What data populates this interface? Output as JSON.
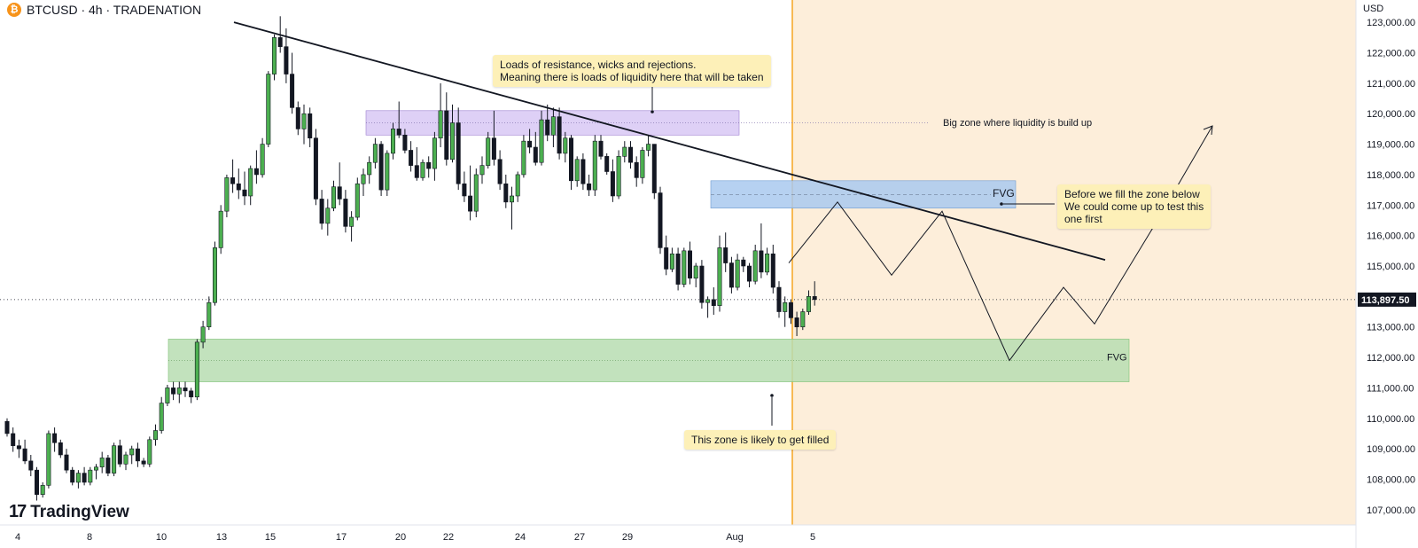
{
  "header": {
    "coin_glyph": "₿",
    "title": "BTCUSD · 4h · TRADENATION"
  },
  "currency": "USD",
  "brand": {
    "logo": "17",
    "name": "TradingView"
  },
  "colors": {
    "bull": "#4caf50",
    "bear": "#131722",
    "forecast_bg": "#fdeeda",
    "forecast_line": "#f5a623",
    "purple_zone": "#d8c8f5",
    "blue_zone": "#a9c9ee",
    "green_zone": "#b7ddb2"
  },
  "annotations": {
    "resistance_note": [
      "Loads of resistance, wicks and rejections.",
      "Meaning there is loads of liquidity here that will be taken"
    ],
    "fill_zone_note": "This zone is likely to get filled",
    "test_zone_note": [
      "Before we fill the zone below",
      "We could come up to test this",
      "one first"
    ],
    "big_zone_label": "Big zone where liquidity is build up",
    "fvg_upper_label": "FVG",
    "fvg_lower_label": "FVG"
  },
  "chart_data": {
    "type": "candlestick",
    "symbol": "BTCUSD",
    "interval": "4h",
    "y_axis": {
      "ylim": [
        106500,
        123500
      ],
      "ticks": [
        "107,000.00",
        "108,000.00",
        "109,000.00",
        "110,000.00",
        "111,000.00",
        "112,000.00",
        "113,000.00",
        "114,000.00",
        "115,000.00",
        "116,000.00",
        "117,000.00",
        "118,000.00",
        "119,000.00",
        "120,000.00",
        "121,000.00",
        "122,000.00",
        "123,000.00"
      ]
    },
    "x_axis": {
      "ticks": [
        "4",
        "8",
        "10",
        "13",
        "15",
        "17",
        "20",
        "22",
        "24",
        "27",
        "29",
        "Aug",
        "5"
      ]
    },
    "last_price": 113897.5,
    "last_price_label": "113,897.50",
    "candles": [
      [
        109900,
        110000,
        109400,
        109500
      ],
      [
        109500,
        109700,
        108900,
        109100
      ],
      [
        109100,
        109300,
        108700,
        109000
      ],
      [
        109000,
        109300,
        108500,
        108600
      ],
      [
        108600,
        108800,
        108100,
        108300
      ],
      [
        108300,
        108400,
        107300,
        107500
      ],
      [
        107500,
        107900,
        107400,
        107800
      ],
      [
        107800,
        109600,
        107700,
        109500
      ],
      [
        109500,
        109700,
        108900,
        109200
      ],
      [
        109200,
        109300,
        108700,
        108800
      ],
      [
        108800,
        109000,
        108200,
        108300
      ],
      [
        108300,
        108400,
        107800,
        107900
      ],
      [
        107900,
        108300,
        107700,
        108200
      ],
      [
        108200,
        108400,
        107800,
        107900
      ],
      [
        107900,
        108400,
        107800,
        108300
      ],
      [
        108300,
        108500,
        108000,
        108400
      ],
      [
        108400,
        108900,
        108200,
        108700
      ],
      [
        108700,
        108800,
        108100,
        108200
      ],
      [
        108200,
        109200,
        108100,
        109100
      ],
      [
        109100,
        109300,
        108400,
        108500
      ],
      [
        108500,
        108900,
        108300,
        108800
      ],
      [
        108800,
        109100,
        108500,
        109000
      ],
      [
        109000,
        109200,
        108400,
        108600
      ],
      [
        108600,
        108700,
        108400,
        108500
      ],
      [
        108500,
        109400,
        108400,
        109300
      ],
      [
        109300,
        109800,
        109100,
        109600
      ],
      [
        109600,
        110700,
        109500,
        110500
      ],
      [
        110500,
        111100,
        110400,
        111000
      ],
      [
        111000,
        111200,
        110600,
        110800
      ],
      [
        110800,
        111200,
        110500,
        111000
      ],
      [
        111000,
        111200,
        110700,
        110900
      ],
      [
        110900,
        111000,
        110500,
        110700
      ],
      [
        110700,
        112600,
        110600,
        112500
      ],
      [
        112500,
        113200,
        112300,
        113000
      ],
      [
        113000,
        114000,
        112900,
        113800
      ],
      [
        113800,
        115800,
        113700,
        115600
      ],
      [
        115600,
        117000,
        115400,
        116800
      ],
      [
        116800,
        118000,
        116600,
        117900
      ],
      [
        117900,
        118500,
        117400,
        117700
      ],
      [
        117700,
        118200,
        117200,
        117500
      ],
      [
        117500,
        118100,
        117000,
        117300
      ],
      [
        117300,
        118300,
        117000,
        118200
      ],
      [
        118200,
        118800,
        117700,
        118000
      ],
      [
        118000,
        119200,
        117900,
        119000
      ],
      [
        119000,
        121400,
        118900,
        121300
      ],
      [
        121300,
        122600,
        121100,
        122500
      ],
      [
        122500,
        123200,
        122000,
        122200
      ],
      [
        122200,
        122800,
        121000,
        121300
      ],
      [
        121300,
        122000,
        120000,
        120200
      ],
      [
        120200,
        120400,
        119300,
        119500
      ],
      [
        119500,
        120300,
        119000,
        120000
      ],
      [
        120000,
        120200,
        118900,
        119200
      ],
      [
        119200,
        119500,
        117000,
        117200
      ],
      [
        117200,
        117500,
        116200,
        116400
      ],
      [
        116400,
        117200,
        116000,
        116900
      ],
      [
        116900,
        117800,
        116800,
        117600
      ],
      [
        117600,
        118400,
        117000,
        117200
      ],
      [
        117200,
        117500,
        116100,
        116300
      ],
      [
        116300,
        116800,
        115800,
        116600
      ],
      [
        116600,
        117900,
        116500,
        117700
      ],
      [
        117700,
        118200,
        117300,
        118000
      ],
      [
        118000,
        118600,
        117700,
        118400
      ],
      [
        118400,
        119200,
        118200,
        119000
      ],
      [
        119000,
        119100,
        117300,
        117500
      ],
      [
        117500,
        118800,
        117300,
        118700
      ],
      [
        118700,
        119700,
        118500,
        119500
      ],
      [
        119500,
        120400,
        119200,
        119300
      ],
      [
        119300,
        119500,
        118700,
        118800
      ],
      [
        118800,
        119100,
        118100,
        118300
      ],
      [
        118300,
        118900,
        117800,
        117900
      ],
      [
        117900,
        118500,
        117800,
        118400
      ],
      [
        118400,
        118600,
        117900,
        118200
      ],
      [
        118200,
        119400,
        117800,
        119200
      ],
      [
        119200,
        121000,
        118900,
        120100
      ],
      [
        120100,
        120700,
        118300,
        118500
      ],
      [
        118500,
        120300,
        118400,
        119700
      ],
      [
        119700,
        120200,
        117500,
        117700
      ],
      [
        117700,
        118100,
        117100,
        117300
      ],
      [
        117300,
        118300,
        116500,
        116800
      ],
      [
        116800,
        118200,
        116600,
        118000
      ],
      [
        118000,
        118600,
        117700,
        118300
      ],
      [
        118300,
        119400,
        118200,
        119200
      ],
      [
        119200,
        120100,
        118300,
        118500
      ],
      [
        118500,
        118800,
        117500,
        117700
      ],
      [
        117700,
        118000,
        116900,
        117100
      ],
      [
        117100,
        117600,
        116200,
        117300
      ],
      [
        117300,
        118100,
        117100,
        118000
      ],
      [
        118000,
        119300,
        117900,
        119100
      ],
      [
        119100,
        119500,
        118700,
        118900
      ],
      [
        118900,
        119400,
        118300,
        118400
      ],
      [
        118400,
        120100,
        118300,
        119800
      ],
      [
        119800,
        120300,
        119100,
        119300
      ],
      [
        119300,
        120200,
        118900,
        119900
      ],
      [
        119900,
        120200,
        118500,
        118700
      ],
      [
        118700,
        119400,
        118400,
        119200
      ],
      [
        119200,
        119300,
        117500,
        117800
      ],
      [
        117800,
        118600,
        117600,
        118500
      ],
      [
        118500,
        118700,
        117500,
        117700
      ],
      [
        117700,
        118000,
        117300,
        117500
      ],
      [
        117500,
        119300,
        117300,
        119100
      ],
      [
        119100,
        119300,
        118500,
        118600
      ],
      [
        118600,
        118700,
        118000,
        118100
      ],
      [
        118100,
        118500,
        117100,
        117300
      ],
      [
        117300,
        118800,
        117200,
        118600
      ],
      [
        118600,
        119100,
        118400,
        118900
      ],
      [
        118900,
        119100,
        118200,
        118400
      ],
      [
        118400,
        118600,
        117600,
        117900
      ],
      [
        117900,
        118900,
        117700,
        118800
      ],
      [
        118800,
        119300,
        118600,
        119000
      ],
      [
        119000,
        119000,
        117200,
        117400
      ],
      [
        117400,
        117600,
        115400,
        115600
      ],
      [
        115600,
        116000,
        114700,
        114900
      ],
      [
        114900,
        115600,
        114800,
        115400
      ],
      [
        115400,
        115600,
        114200,
        114400
      ],
      [
        114400,
        115600,
        114300,
        115500
      ],
      [
        115500,
        115800,
        114400,
        114600
      ],
      [
        114600,
        115100,
        114300,
        115000
      ],
      [
        115000,
        115200,
        113600,
        113800
      ],
      [
        113800,
        114000,
        113300,
        113900
      ],
      [
        113900,
        114300,
        113400,
        113700
      ],
      [
        113700,
        116000,
        113500,
        115600
      ],
      [
        115600,
        116100,
        114800,
        115100
      ],
      [
        115100,
        115300,
        114100,
        114300
      ],
      [
        114300,
        115400,
        114200,
        115200
      ],
      [
        115200,
        115300,
        114800,
        115000
      ],
      [
        115000,
        115100,
        114300,
        114500
      ],
      [
        114500,
        115700,
        114400,
        115500
      ],
      [
        115500,
        116400,
        114600,
        114800
      ],
      [
        114800,
        115600,
        114700,
        115400
      ],
      [
        115400,
        115700,
        114100,
        114300
      ],
      [
        114300,
        114500,
        113300,
        113500
      ],
      [
        113500,
        114000,
        113000,
        113800
      ],
      [
        113800,
        113900,
        113100,
        113300
      ],
      [
        113300,
        113500,
        112700,
        113000
      ],
      [
        113000,
        113600,
        112900,
        113500
      ],
      [
        113500,
        114200,
        113400,
        114000
      ],
      [
        114000,
        114500,
        113700,
        113900
      ]
    ],
    "zones": [
      {
        "name": "Big zone where liquidity is build up",
        "price_low": 119300,
        "price_high": 120100
      },
      {
        "name": "FVG",
        "price_low": 116900,
        "price_high": 117800
      },
      {
        "name": "FVG",
        "price_low": 111200,
        "price_high": 112600
      }
    ],
    "trendline": [
      [
        123000
      ],
      [
        115200
      ]
    ],
    "projection_path": [
      115100,
      117100,
      114700,
      116800,
      111900,
      114300,
      113100,
      116500,
      119600
    ]
  }
}
